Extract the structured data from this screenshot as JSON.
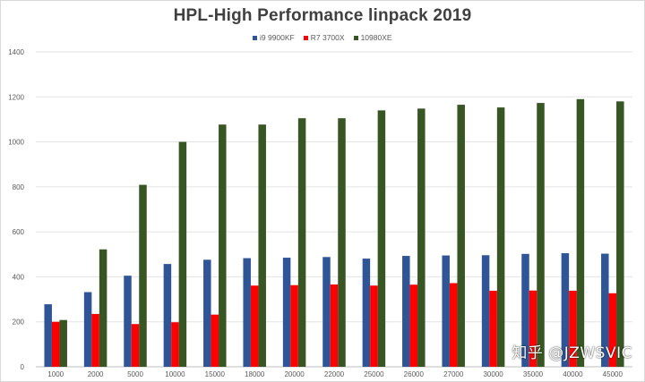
{
  "chart_data": {
    "type": "bar",
    "title": "HPL-High Performance linpack 2019",
    "xlabel": "",
    "ylabel": "",
    "ylim": [
      0,
      1400
    ],
    "yticks": [
      0,
      200,
      400,
      600,
      800,
      1000,
      1200,
      1400
    ],
    "grid": true,
    "legend_position": "top-center",
    "categories": [
      "1000",
      "2000",
      "5000",
      "10000",
      "15000",
      "18000",
      "20000",
      "22000",
      "25000",
      "26000",
      "27000",
      "30000",
      "35000",
      "40000",
      "45000"
    ],
    "series": [
      {
        "name": "i9 9900KF",
        "color": "#2f5597",
        "values": [
          278,
          332,
          405,
          457,
          476,
          483,
          485,
          488,
          481,
          493,
          495,
          496,
          502,
          505,
          503
        ]
      },
      {
        "name": "R7 3700X",
        "color": "#ff0000",
        "values": [
          200,
          235,
          190,
          198,
          232,
          361,
          363,
          366,
          361,
          365,
          372,
          338,
          339,
          338,
          327
        ]
      },
      {
        "name": "10980XE",
        "color": "#375623",
        "values": [
          208,
          522,
          809,
          1000,
          1077,
          1077,
          1105,
          1105,
          1140,
          1148,
          1165,
          1153,
          1173,
          1190,
          1180
        ]
      }
    ]
  },
  "watermark": "知乎 @JZWSVIC"
}
